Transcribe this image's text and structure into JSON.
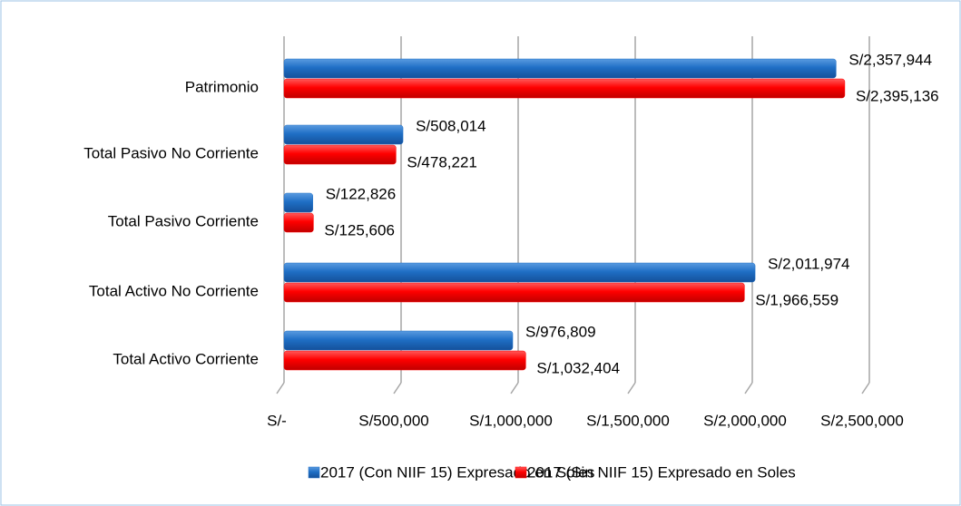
{
  "chart_data": {
    "type": "bar",
    "orientation": "horizontal",
    "categories": [
      "Patrimonio",
      "Total Pasivo No Corriente",
      "Total Pasivo Corriente",
      "Total Activo No Corriente",
      "Total Activo Corriente"
    ],
    "series": [
      {
        "name": "2017 (Con NIIF 15) Expresado en Soles",
        "color": "#1f6fc5",
        "values": [
          2357944,
          508014,
          122826,
          2011974,
          976809
        ],
        "value_labels": [
          "S/2,357,944",
          "S/508,014",
          "S/122,826",
          "S/2,011,974",
          "S/976,809"
        ]
      },
      {
        "name": "2017 (Sin NIIF 15) Expresado en Soles",
        "color": "#ff0000",
        "values": [
          2395136,
          478221,
          125606,
          1966559,
          1032404
        ],
        "value_labels": [
          "S/2,395,136",
          "S/478,221",
          "S/125,606",
          "S/1,966,559",
          "S/1,032,404"
        ]
      }
    ],
    "xlim": [
      0,
      2500000
    ],
    "xticks": [
      {
        "value": 0,
        "label": "S/-"
      },
      {
        "value": 500000,
        "label": "S/500,000"
      },
      {
        "value": 1000000,
        "label": "S/1,000,000"
      },
      {
        "value": 1500000,
        "label": "S/1,500,000"
      },
      {
        "value": 2000000,
        "label": "S/2,000,000"
      },
      {
        "value": 2500000,
        "label": "S/2,500,000"
      }
    ],
    "grid": true,
    "legend": "bottom"
  }
}
